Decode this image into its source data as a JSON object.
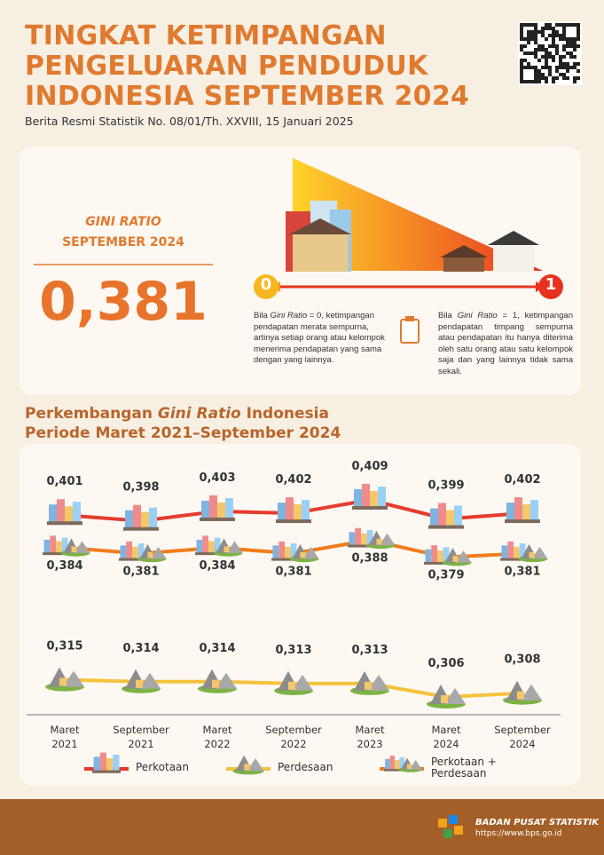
{
  "header": {
    "title": [
      "TINGKAT KETIMPANGAN",
      "PENGELUARAN PENDUDUK",
      "INDONESIA SEPTEMBER 2024"
    ],
    "subtitle": "Berita Resmi Statistik No. 08/01/Th. XXVIII, 15 Januari 2025"
  },
  "summary": {
    "label": "GINI RATIO",
    "period": "SEPTEMBER 2024",
    "value": "0,381",
    "scale_min": "0",
    "scale_max": "1",
    "min_note": [
      "Bila ",
      "Gini Ratio",
      " = 0, ketimpangan pendapatan merata sempurna, artinya setiap orang atau kelompok menerima pendapatan yang sama dengan yang lainnya."
    ],
    "max_note": [
      "Bila ",
      "Gini Ratio",
      " = 1, ketimpangan pendapatan timpang sempurna atau pendapatan itu hanya diterima oleh satu orang atau satu kelompok saja dan yang lainnya tidak sama sekali."
    ]
  },
  "chart_data": {
    "type": "line",
    "title": [
      "Perkembangan ",
      "Gini Ratio",
      " Indonesia"
    ],
    "subtitle": "Periode Maret 2021–September 2024",
    "categories": [
      [
        "Maret",
        "2021"
      ],
      [
        "September",
        "2021"
      ],
      [
        "Maret",
        "2022"
      ],
      [
        "September",
        "2022"
      ],
      [
        "Maret",
        "2023"
      ],
      [
        "Maret",
        "2024"
      ],
      [
        "September",
        "2024"
      ]
    ],
    "series": [
      {
        "name": "Perkotaan",
        "color": "#e63b2e",
        "marker": "city",
        "label_position": "above",
        "values": [
          0.401,
          0.398,
          0.403,
          0.402,
          0.409,
          0.399,
          0.402
        ],
        "value_labels": [
          "0,401",
          "0,398",
          "0,403",
          "0,402",
          "0,409",
          "0,399",
          "0,402"
        ]
      },
      {
        "name": "Perdesaan",
        "color": "#f5c33b",
        "marker": "village",
        "label_position": "above",
        "values": [
          0.315,
          0.314,
          0.314,
          0.313,
          0.313,
          0.306,
          0.308
        ],
        "value_labels": [
          "0,315",
          "0,314",
          "0,314",
          "0,313",
          "0,313",
          "0,306",
          "0,308"
        ]
      },
      {
        "name": "Perkotaan + Perdesaan",
        "color": "#f07d1d",
        "marker": "both",
        "label_position": "below",
        "values": [
          0.384,
          0.381,
          0.384,
          0.381,
          0.388,
          0.379,
          0.381
        ],
        "value_labels": [
          "0,384",
          "0,381",
          "0,384",
          "0,381",
          "0,388",
          "0,379",
          "0,381"
        ]
      }
    ]
  },
  "footer": {
    "org": "BADAN PUSAT STATISTIK",
    "url": "https://www.bps.go.id"
  }
}
